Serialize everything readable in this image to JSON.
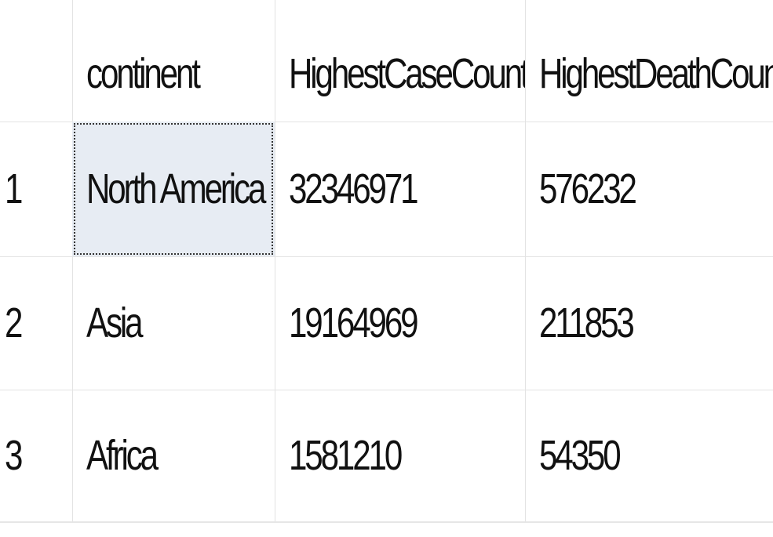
{
  "grid": {
    "columns": [
      "",
      "continent",
      "HighestCaseCount",
      "HighestDeathCount"
    ],
    "rows": [
      {
        "index": "1",
        "continent": "North America",
        "highest_case_count": "32346971",
        "highest_death_count": "576232"
      },
      {
        "index": "2",
        "continent": "Asia",
        "highest_case_count": "19164969",
        "highest_death_count": "211853"
      },
      {
        "index": "3",
        "continent": "Africa",
        "highest_case_count": "1581210",
        "highest_death_count": "54350"
      }
    ],
    "selected_cell": {
      "row": 0,
      "column": "continent"
    },
    "colors": {
      "gridline": "#e3e3e3",
      "selected_background": "#e7ecf3",
      "text": "#111111"
    }
  }
}
